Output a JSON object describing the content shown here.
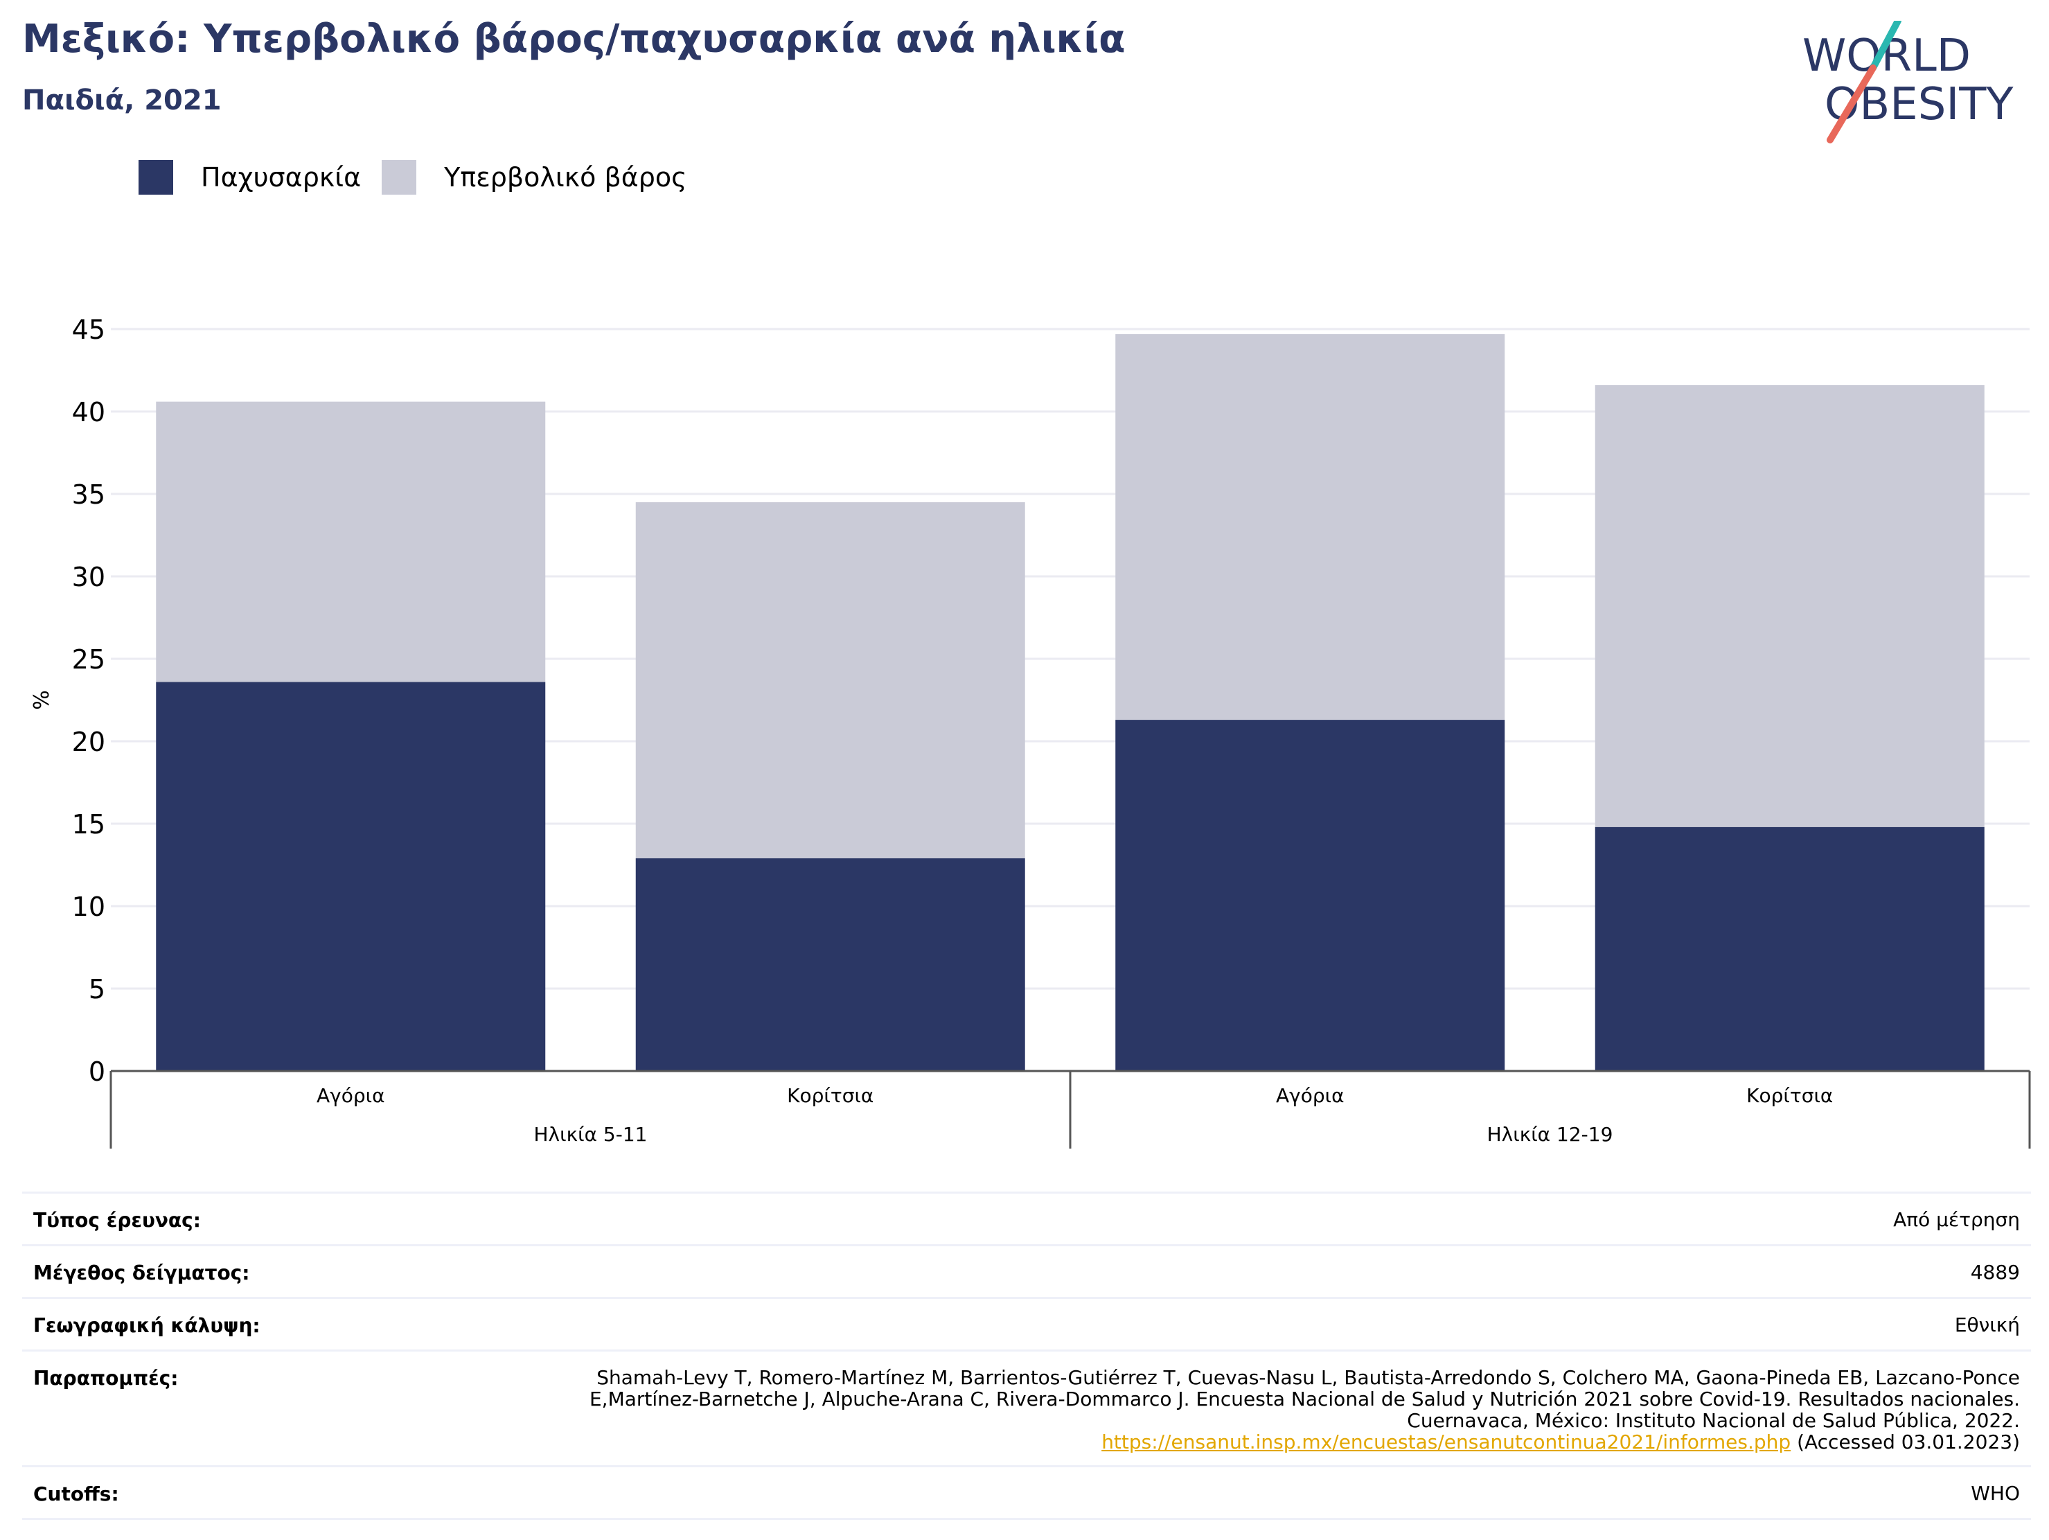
{
  "header": {
    "title": "Μεξικό: Υπερβολικό βάρος/παχυσαρκία ανά ηλικία",
    "subtitle": "Παιδιά, 2021"
  },
  "logo": {
    "line1": "WORLD",
    "line2": "OBESITY",
    "colors": {
      "text": "#2b3765",
      "slash_top": "#2ab7b0",
      "slash_bottom": "#e8685a"
    }
  },
  "legend": [
    {
      "label": "Παχυσαρκία",
      "color": "#2b3765"
    },
    {
      "label": "Υπερβολικό βάρος",
      "color": "#cacbd7"
    }
  ],
  "chart_data": {
    "type": "bar",
    "stacked": true,
    "ylabel": "%",
    "ylim": [
      0,
      45
    ],
    "yticks": [
      0,
      5,
      10,
      15,
      20,
      25,
      30,
      35,
      40,
      45
    ],
    "grid": true,
    "legend_position": "top-left",
    "categories": [
      "Αγόρια",
      "Κορίτσια",
      "Αγόρια",
      "Κορίτσια"
    ],
    "groups": [
      {
        "label": "Ηλικία 5-11",
        "start": 0,
        "end": 1
      },
      {
        "label": "Ηλικία 12-19",
        "start": 2,
        "end": 3
      }
    ],
    "series": [
      {
        "name": "Παχυσαρκία",
        "color": "#2b3765",
        "values": [
          23.6,
          12.9,
          21.3,
          14.8
        ]
      },
      {
        "name": "Υπερβολικό βάρος",
        "color": "#cacbd7",
        "values": [
          17.0,
          21.6,
          23.4,
          26.8
        ]
      }
    ]
  },
  "meta": [
    {
      "label": "Τύπος έρευνας:",
      "value": "Από μέτρηση"
    },
    {
      "label": "Μέγεθος δείγματος:",
      "value": "4889"
    },
    {
      "label": "Γεωγραφική κάλυψη:",
      "value": "Εθνική"
    },
    {
      "label": "Παραπομπές:",
      "value": "Shamah-Levy T, Romero-Martínez M, Barrientos-Gutiérrez T, Cuevas-Nasu L, Bautista-Arredondo S, Colchero MA, Gaona-Pineda EB, Lazcano-Ponce E,Martínez-Barnetche J, Alpuche-Arana C, Rivera-Dommarco J. Encuesta Nacional de Salud y Nutrición 2021 sobre Covid-19. Resultados nacionales. Cuernavaca, México: Instituto Nacional de Salud Pública, 2022.",
      "link": "https://ensanut.insp.mx/encuestas/ensanutcontinua2021/informes.php",
      "suffix": " (Accessed 03.01.2023)"
    },
    {
      "label": "Cutoffs:",
      "value": "WHO"
    }
  ]
}
